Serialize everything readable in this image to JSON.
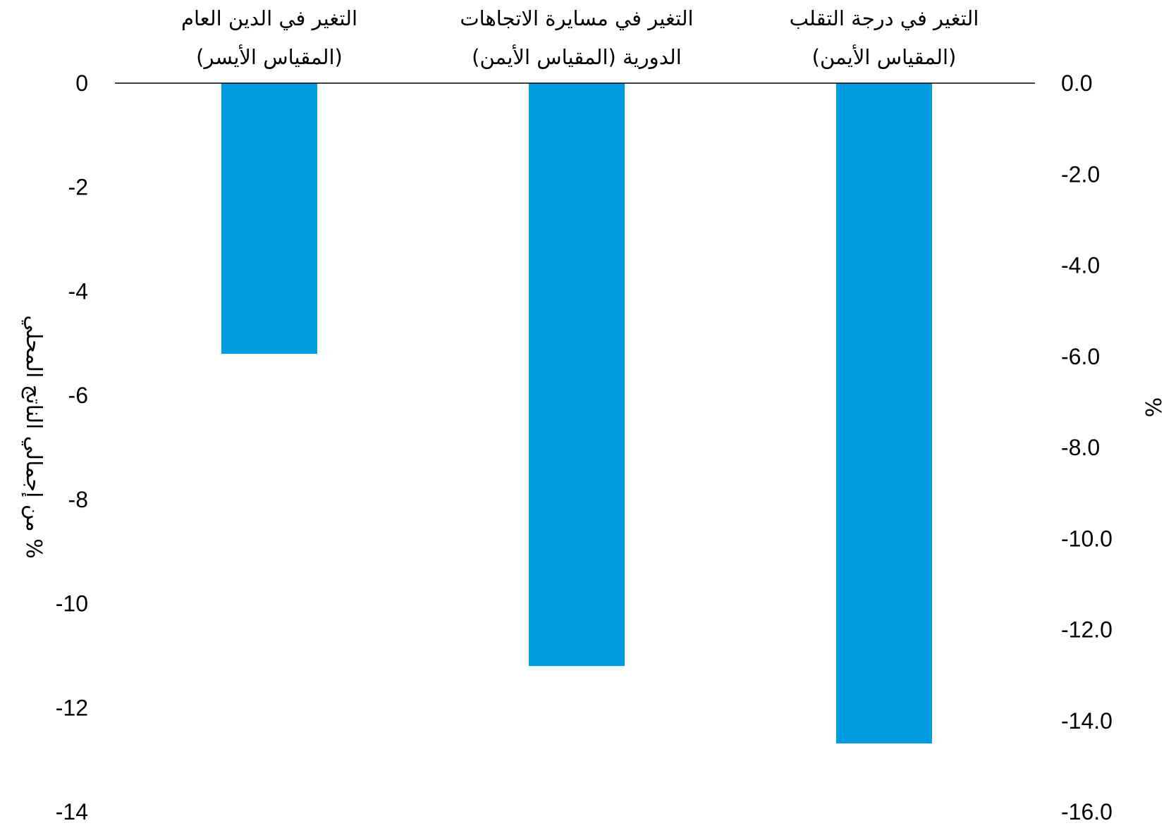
{
  "chart_data": {
    "type": "bar",
    "bar_color": "#009ADE",
    "categories": [
      {
        "line1": "التغير في الدين العام",
        "line2": "(المقياس الأيسر)",
        "axis": "left"
      },
      {
        "line1": "التغير في مسايرة الاتجاهات",
        "line2": "الدورية (المقياس الأيمن)",
        "axis": "right"
      },
      {
        "line1": "التغير في درجة التقلب",
        "line2": "(المقياس الأيمن)",
        "axis": "right"
      }
    ],
    "values": [
      -5.2,
      -12.8,
      -14.5
    ],
    "left_axis": {
      "label": "% من إجمالي الناتج المحلي",
      "range": [
        -14,
        0
      ],
      "ticks": [
        "0",
        "-2",
        "-4",
        "-6",
        "-8",
        "-10",
        "-12",
        "-14"
      ]
    },
    "right_axis": {
      "label": "%",
      "range": [
        -16,
        0
      ],
      "ticks": [
        "0.0",
        "-2.0",
        "-4.0",
        "-6.0",
        "-8.0",
        "-10.0",
        "-12.0",
        "-14.0",
        "-16.0"
      ]
    }
  }
}
